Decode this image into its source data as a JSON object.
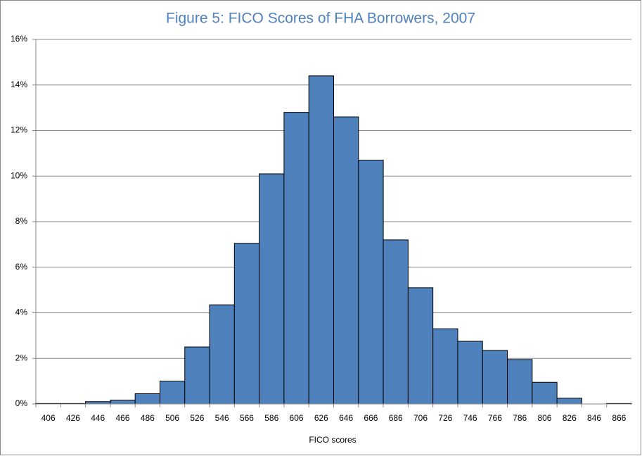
{
  "chart_data": {
    "type": "bar",
    "title": "Figure 5: FICO Scores of FHA Borrowers, 2007",
    "x_label": "FICO scores",
    "categories": [
      "406",
      "426",
      "446",
      "466",
      "486",
      "506",
      "526",
      "546",
      "566",
      "586",
      "606",
      "626",
      "646",
      "666",
      "686",
      "706",
      "726",
      "746",
      "766",
      "786",
      "806",
      "826",
      "846",
      "866"
    ],
    "values": [
      0.02,
      0.02,
      0.1,
      0.17,
      0.45,
      1.0,
      2.5,
      4.35,
      7.05,
      10.1,
      12.8,
      14.4,
      12.6,
      10.7,
      7.2,
      5.1,
      3.3,
      2.75,
      2.35,
      1.95,
      0.95,
      0.25,
      0,
      0.02
    ],
    "color": "#4f81bd",
    "ylim": [
      0,
      16
    ],
    "yticks": [
      {
        "value": 0,
        "label": "0%"
      },
      {
        "value": 2,
        "label": "2%"
      },
      {
        "value": 4,
        "label": "4%"
      },
      {
        "value": 6,
        "label": "6%"
      },
      {
        "value": 8,
        "label": "8%"
      },
      {
        "value": 10,
        "label": "10%"
      },
      {
        "value": 12,
        "label": "12%"
      },
      {
        "value": 14,
        "label": "14%"
      },
      {
        "value": 16,
        "label": "16%"
      }
    ],
    "grid": true
  }
}
